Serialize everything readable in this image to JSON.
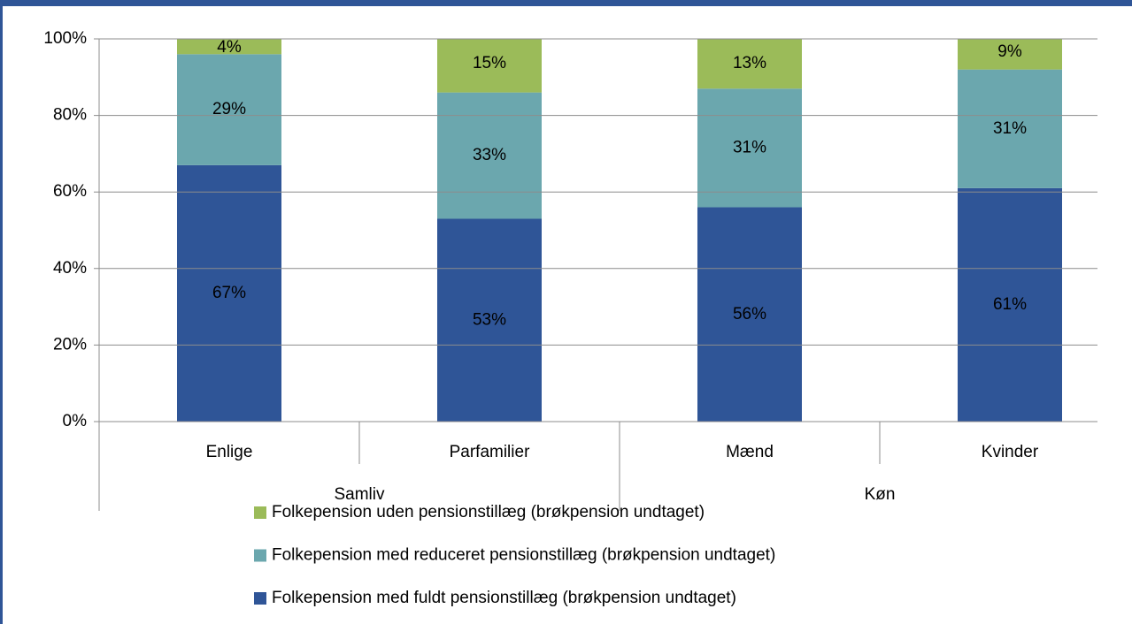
{
  "chart_data": {
    "type": "bar",
    "stacked": true,
    "categories": [
      "Enlige",
      "Parfamilier",
      "Mænd",
      "Kvinder"
    ],
    "group_labels": [
      "Samliv",
      "Køn"
    ],
    "series": [
      {
        "name": "Folkepension med fuldt pensionstillæg (brøkpension undtaget)",
        "color": "#2f5597",
        "values": [
          67,
          53,
          56,
          61
        ],
        "value_labels": [
          "67%",
          "53%",
          "56%",
          "61%"
        ]
      },
      {
        "name": "Folkepension med reduceret pensionstillæg (brøkpension undtaget)",
        "color": "#6ba7ae",
        "values": [
          29,
          33,
          31,
          31
        ],
        "value_labels": [
          "29%",
          "33%",
          "31%",
          "31%"
        ]
      },
      {
        "name": "Folkepension uden pensionstillæg (brøkpension undtaget)",
        "color": "#9bbb59",
        "values": [
          4,
          15,
          13,
          9
        ],
        "value_labels": [
          "4%",
          "15%",
          "13%",
          "9%"
        ]
      }
    ],
    "ylim": [
      0,
      100
    ],
    "yticks": [
      {
        "value": 0,
        "label": "0%"
      },
      {
        "value": 20,
        "label": "20%"
      },
      {
        "value": 40,
        "label": "40%"
      },
      {
        "value": 60,
        "label": "60%"
      },
      {
        "value": 80,
        "label": "80%"
      },
      {
        "value": 100,
        "label": "100%"
      }
    ],
    "grid": true,
    "legend": "bottom"
  }
}
